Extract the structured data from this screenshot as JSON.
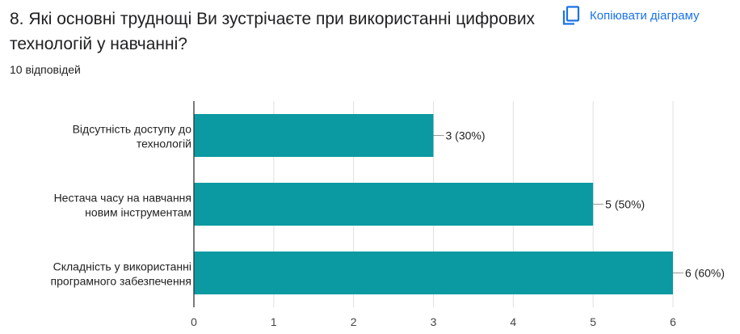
{
  "question": {
    "title": "8. Які основні труднощі Ви зустрічаєте при використанні цифрових технологій у навчанні?",
    "responses": "10 відповідей"
  },
  "toolbar": {
    "copy_label": "Копіювати діаграму",
    "copy_icon": "copy-icon"
  },
  "colors": {
    "bar": "#0b9aa1",
    "accent": "#1a73e8",
    "grid": "#e0e0e0",
    "axis": "#333333"
  },
  "chart_data": {
    "type": "bar",
    "orientation": "horizontal",
    "categories": [
      [
        "Відсутність доступу до",
        "технологій"
      ],
      [
        "Нестача часу на навчання",
        "новим інструментам"
      ],
      [
        "Складність у використанні",
        "програмного забезпечення"
      ]
    ],
    "values": [
      3,
      5,
      6
    ],
    "data_labels": [
      "3 (30%)",
      "5 (50%)",
      "6 (60%)"
    ],
    "xlim": [
      0,
      6
    ],
    "xticks": [
      "0",
      "1",
      "2",
      "3",
      "4",
      "5",
      "6"
    ],
    "grid": true,
    "legend": "none"
  }
}
